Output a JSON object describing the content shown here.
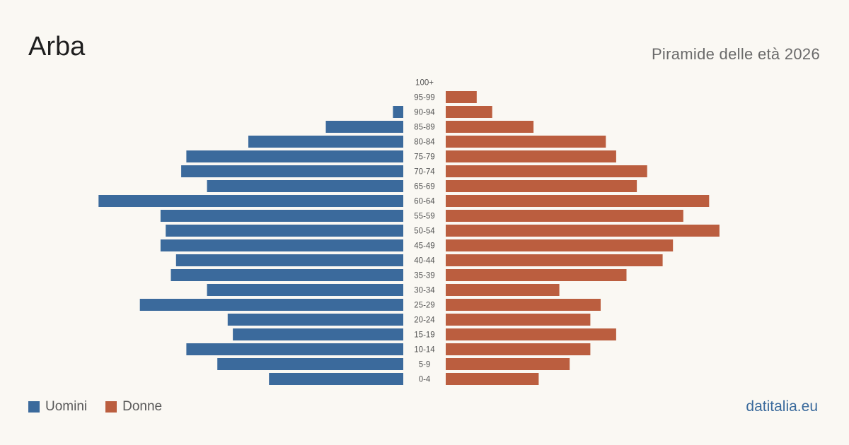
{
  "title": "Arba",
  "subtitle": "Piramide delle età 2026",
  "source": "datitalia.eu",
  "colors": {
    "male": "#3b6a9c",
    "female": "#bb5e3f",
    "background": "#faf8f3"
  },
  "chart_data": {
    "type": "bar",
    "orientation": "horizontal",
    "subtype": "population-pyramid",
    "categories": [
      "100+",
      "95-99",
      "90-94",
      "85-89",
      "80-84",
      "75-79",
      "70-74",
      "65-69",
      "60-64",
      "55-59",
      "50-54",
      "45-49",
      "40-44",
      "35-39",
      "30-34",
      "25-29",
      "20-24",
      "15-19",
      "10-14",
      "5-9",
      "0-4"
    ],
    "series": [
      {
        "name": "Uomini",
        "color": "#3b6a9c",
        "values": [
          0,
          0,
          2,
          15,
          30,
          42,
          43,
          38,
          59,
          47,
          46,
          47,
          44,
          45,
          38,
          51,
          34,
          33,
          42,
          36,
          26
        ]
      },
      {
        "name": "Donne",
        "color": "#bb5e3f",
        "values": [
          0,
          6,
          9,
          17,
          31,
          33,
          39,
          37,
          51,
          46,
          53,
          44,
          42,
          35,
          22,
          30,
          28,
          33,
          28,
          24,
          18
        ]
      }
    ],
    "legend_position": "bottom-left",
    "grid": false
  }
}
